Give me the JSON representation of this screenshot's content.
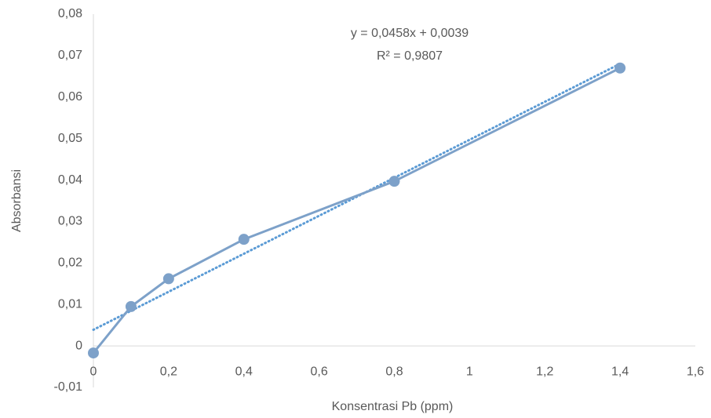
{
  "chart_data": {
    "type": "scatter",
    "xlabel": "Konsentrasi Pb (ppm)",
    "ylabel": "Absorbansi",
    "x": [
      0,
      0.1,
      0.2,
      0.4,
      0.8,
      1.4
    ],
    "series": [
      {
        "color": "#7da1c9",
        "values": [
          -0.0017,
          0.0095,
          0.0162,
          0.0257,
          0.0397,
          0.067
        ]
      }
    ],
    "trendline": {
      "color": "#5b9bd5",
      "slope": 0.0458,
      "intercept": 0.0039,
      "equation": "y = 0,0458x + 0,0039",
      "r2": "R² = 0,9807"
    },
    "xlim": [
      0,
      1.6
    ],
    "xticks": [
      0,
      {
        "value": 0.2,
        "label": "0,2"
      },
      {
        "value": 0.4,
        "label": "0,4"
      },
      {
        "value": 0.6,
        "label": "0,6"
      },
      {
        "value": 0.8,
        "label": "0,8"
      },
      1,
      {
        "value": 1.2,
        "label": "1,2"
      },
      {
        "value": 1.4,
        "label": "1,4"
      },
      {
        "value": 1.6,
        "label": "1,6"
      }
    ],
    "ylim": [
      -0.01,
      0.08
    ],
    "yticks": [
      {
        "value": -0.01,
        "label": "-0,01"
      },
      0,
      {
        "value": 0.01,
        "label": "0,01"
      },
      {
        "value": 0.02,
        "label": "0,02"
      },
      {
        "value": 0.03,
        "label": "0,03"
      },
      {
        "value": 0.04,
        "label": "0,04"
      },
      {
        "value": 0.05,
        "label": "0,05"
      },
      {
        "value": 0.06,
        "label": "0,06"
      },
      {
        "value": 0.07,
        "label": "0,07"
      },
      {
        "value": 0.08,
        "label": "0,08"
      }
    ],
    "grid": false
  }
}
